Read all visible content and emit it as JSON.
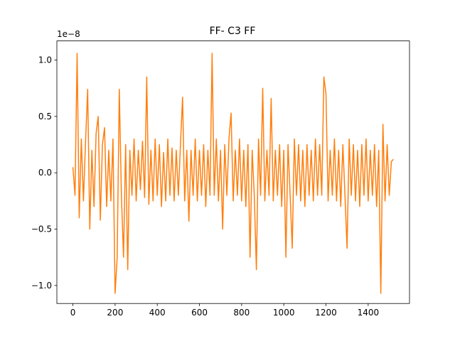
{
  "chart_data": {
    "type": "line",
    "title": "FF- C3 FF",
    "y_offset_label": "1e−8",
    "xlim": [
      -76,
      1596
    ],
    "ylim": [
      -1.16,
      1.17
    ],
    "xticks": [
      0,
      200,
      400,
      600,
      800,
      1000,
      1200,
      1400
    ],
    "yticks": [
      {
        "value": -1.0,
        "label": "−1.0"
      },
      {
        "value": -0.5,
        "label": "−0.5"
      },
      {
        "value": 0,
        "label": "0.0"
      },
      0.5,
      {
        "value": 1.0,
        "label": "1.0"
      }
    ],
    "grid": false,
    "x": [
      0,
      10,
      20,
      30,
      40,
      50,
      60,
      70,
      80,
      90,
      100,
      110,
      120,
      130,
      140,
      150,
      160,
      170,
      180,
      190,
      200,
      210,
      220,
      230,
      240,
      250,
      260,
      270,
      280,
      290,
      300,
      310,
      320,
      330,
      340,
      350,
      360,
      370,
      380,
      390,
      400,
      410,
      420,
      430,
      440,
      450,
      460,
      470,
      480,
      490,
      500,
      510,
      520,
      530,
      540,
      550,
      560,
      570,
      580,
      590,
      600,
      610,
      620,
      630,
      640,
      650,
      660,
      670,
      680,
      690,
      700,
      710,
      720,
      730,
      740,
      750,
      760,
      770,
      780,
      790,
      800,
      810,
      820,
      830,
      840,
      850,
      860,
      870,
      880,
      890,
      900,
      910,
      920,
      930,
      940,
      950,
      960,
      970,
      980,
      990,
      1000,
      1010,
      1020,
      1030,
      1040,
      1050,
      1060,
      1070,
      1080,
      1090,
      1100,
      1110,
      1120,
      1130,
      1140,
      1150,
      1160,
      1170,
      1180,
      1190,
      1200,
      1210,
      1220,
      1230,
      1240,
      1250,
      1260,
      1270,
      1280,
      1290,
      1300,
      1310,
      1320,
      1330,
      1340,
      1350,
      1360,
      1370,
      1380,
      1390,
      1400,
      1410,
      1420,
      1430,
      1440,
      1450,
      1460,
      1470,
      1480,
      1490,
      1500,
      1510,
      1520
    ],
    "series": [
      {
        "color": "#ff7f0e",
        "values": [
          0.05,
          -0.2,
          1.06,
          -0.4,
          0.3,
          -0.25,
          0.28,
          0.74,
          -0.5,
          0.2,
          -0.3,
          0.35,
          0.5,
          -0.42,
          0.25,
          0.4,
          -0.3,
          0.2,
          -0.25,
          0.3,
          -1.07,
          -0.75,
          0.74,
          -0.2,
          -0.75,
          0.25,
          -0.86,
          0.2,
          -0.2,
          0.3,
          -0.25,
          0.2,
          -0.15,
          0.28,
          -0.22,
          0.85,
          -0.28,
          0.2,
          -0.25,
          0.3,
          -0.2,
          0.25,
          -0.3,
          0.18,
          -0.25,
          0.3,
          -0.2,
          0.22,
          -0.25,
          0.2,
          -0.2,
          0.25,
          0.67,
          -0.25,
          0.2,
          -0.43,
          0.2,
          -0.2,
          0.3,
          -0.25,
          0.2,
          -0.2,
          0.25,
          -0.3,
          0.2,
          -0.2,
          1.06,
          -0.2,
          0.3,
          -0.25,
          0.2,
          -0.5,
          0.25,
          -0.2,
          0.3,
          0.53,
          -0.25,
          0.2,
          -0.2,
          0.3,
          -0.25,
          0.2,
          -0.3,
          0.25,
          -0.75,
          0.2,
          -0.2,
          -0.86,
          0.3,
          -0.2,
          0.75,
          -0.25,
          0.2,
          -0.2,
          0.66,
          -0.25,
          0.2,
          -0.2,
          0.25,
          -0.3,
          0.2,
          -0.75,
          0.25,
          -0.2,
          -0.67,
          0.3,
          -0.2,
          0.25,
          -0.25,
          0.2,
          -0.3,
          0.25,
          -0.2,
          0.2,
          -0.25,
          0.3,
          -0.2,
          0.25,
          -0.2,
          0.85,
          0.7,
          -0.25,
          0.2,
          -0.2,
          0.3,
          -0.25,
          0.2,
          -0.3,
          0.25,
          -0.2,
          -0.67,
          0.3,
          -0.2,
          0.25,
          -0.25,
          0.2,
          -0.3,
          0.25,
          -0.2,
          0.3,
          -0.25,
          0.2,
          -0.2,
          0.25,
          -0.3,
          0.2,
          -1.07,
          0.43,
          -0.25,
          0.25,
          -0.2,
          0.1,
          0.12
        ]
      }
    ]
  }
}
